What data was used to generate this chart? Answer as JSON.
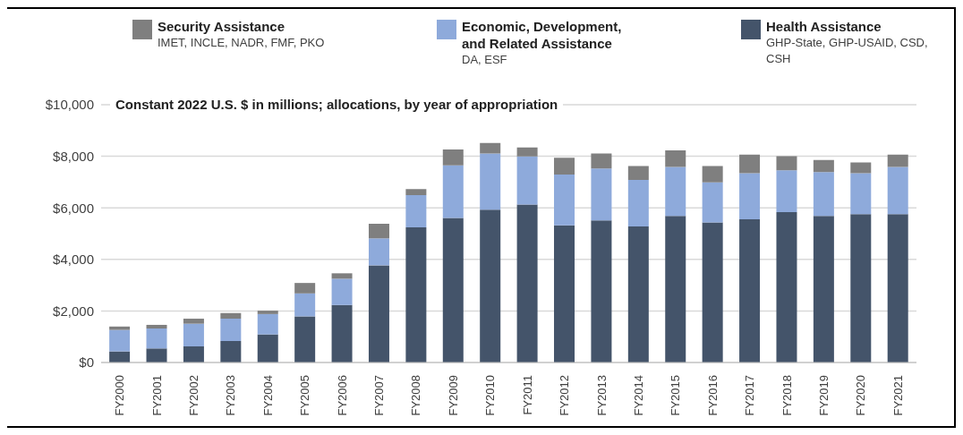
{
  "chart_data": {
    "type": "bar",
    "stacked": true,
    "ylabel": "Constant 2022 U.S. $ in millions; allocations, by year of appropriation",
    "categories": [
      "FY2000",
      "FY2001",
      "FY2002",
      "FY2003",
      "FY2004",
      "FY2005",
      "FY2006",
      "FY2007",
      "FY2008",
      "FY2009",
      "FY2010",
      "FY2011",
      "FY2012",
      "FY2013",
      "FY2014",
      "FY2015",
      "FY2016",
      "FY2017",
      "FY2018",
      "FY2019",
      "FY2020",
      "FY2021"
    ],
    "series": [
      {
        "name": "Health Assistance",
        "color": "#44546a",
        "values": [
          430,
          545,
          625,
          835,
          1090,
          1790,
          2230,
          3770,
          5240,
          5610,
          5930,
          6125,
          5325,
          5510,
          5280,
          5685,
          5430,
          5555,
          5835,
          5685,
          5755,
          5755
        ]
      },
      {
        "name": "Economic, Development, and Related Assistance",
        "color": "#8eaadb",
        "values": [
          835,
          775,
          880,
          870,
          790,
          890,
          1020,
          1045,
          1255,
          2040,
          2180,
          1870,
          1970,
          2020,
          1800,
          1900,
          1555,
          1790,
          1625,
          1705,
          1590,
          1830
        ]
      },
      {
        "name": "Security Assistance",
        "color": "#7f7f7f",
        "values": [
          130,
          140,
          195,
          210,
          130,
          405,
          210,
          570,
          235,
          615,
          405,
          350,
          650,
          580,
          545,
          640,
          640,
          720,
          545,
          465,
          415,
          475
        ]
      }
    ],
    "annotations": [
      "GHP-State, GHP-USAID, CSD, CSH",
      "DA, ESF",
      "IMET, INCLE, NADR, FMF, PKO"
    ],
    "ylim": [
      0,
      10000
    ],
    "yticks": [
      {
        "value": 0,
        "label": "$0"
      },
      {
        "value": 2000,
        "label": "$2,000"
      },
      {
        "value": 4000,
        "label": "$4,000"
      },
      {
        "value": 6000,
        "label": "$6,000"
      },
      {
        "value": 8000,
        "label": "$8,000"
      },
      {
        "value": 10000,
        "label": "$10,000"
      }
    ],
    "grid": "y",
    "legend": "top"
  }
}
